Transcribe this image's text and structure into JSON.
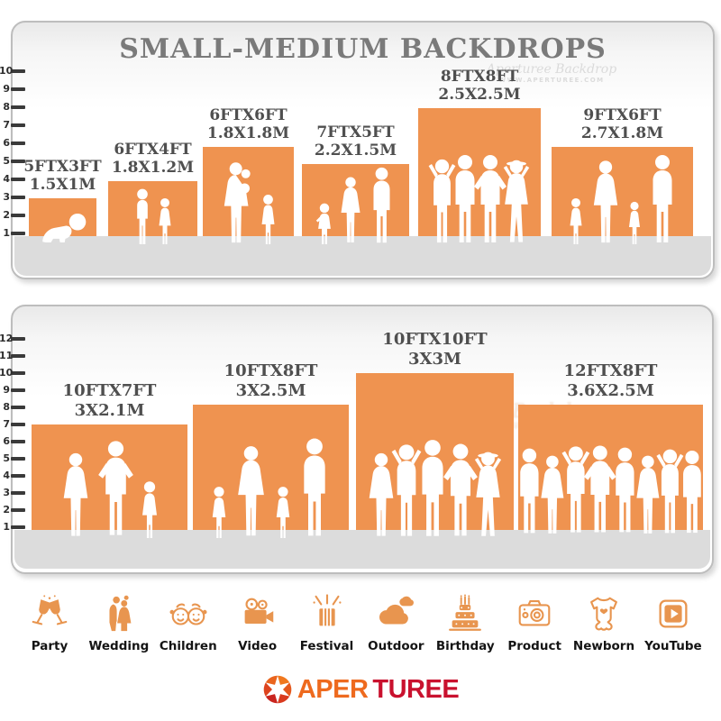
{
  "title": "SMALL-MEDIUM BACKDROPS",
  "panels": {
    "top": {
      "ruler_ticks": [
        "1",
        "2",
        "3",
        "4",
        "5",
        "6",
        "7",
        "8",
        "9",
        "10"
      ],
      "backdrops": [
        {
          "size_ft": "5FTX3FT",
          "size_m": "1.5X1M"
        },
        {
          "size_ft": "6FTX4FT",
          "size_m": "1.8X1.2M"
        },
        {
          "size_ft": "6FTX6FT",
          "size_m": "1.8X1.8M"
        },
        {
          "size_ft": "7FTX5FT",
          "size_m": "2.2X1.5M"
        },
        {
          "size_ft": "8FTX8FT",
          "size_m": "2.5X2.5M"
        },
        {
          "size_ft": "9FTX6FT",
          "size_m": "2.7X1.8M"
        }
      ]
    },
    "bottom": {
      "ruler_ticks": [
        "1",
        "2",
        "3",
        "4",
        "5",
        "6",
        "7",
        "8",
        "9",
        "10",
        "11",
        "12"
      ],
      "backdrops": [
        {
          "size_ft": "10FTX7FT",
          "size_m": "3X2.1M"
        },
        {
          "size_ft": "10FTX8FT",
          "size_m": "3X2.5M"
        },
        {
          "size_ft": "10FTX10FT",
          "size_m": "3X3M"
        },
        {
          "size_ft": "12FTX8FT",
          "size_m": "3.6X2.5M"
        }
      ]
    }
  },
  "watermark": {
    "brand": "Aperturee Backdrop",
    "url": "WWW.APERTUREE.COM"
  },
  "categories": [
    {
      "label": "Party",
      "icon": "party-icon"
    },
    {
      "label": "Wedding",
      "icon": "wedding-icon"
    },
    {
      "label": "Children",
      "icon": "children-icon"
    },
    {
      "label": "Video",
      "icon": "video-icon"
    },
    {
      "label": "Festival",
      "icon": "festival-icon"
    },
    {
      "label": "Outdoor",
      "icon": "outdoor-icon"
    },
    {
      "label": "Birthday",
      "icon": "birthday-icon"
    },
    {
      "label": "Product",
      "icon": "product-icon"
    },
    {
      "label": "Newborn",
      "icon": "newborn-icon"
    },
    {
      "label": "YouTube",
      "icon": "youtube-icon"
    }
  ],
  "logo": {
    "part1": "APER",
    "part2": "TUREE"
  },
  "colors": {
    "backdrop_orange": "#EF9350",
    "floor_gray": "#DCDCDC",
    "icon_accent": "#E8954F",
    "title_gray": "#7A7A7A",
    "logo_orange": "#EE6A1E",
    "logo_red": "#C9112E"
  }
}
